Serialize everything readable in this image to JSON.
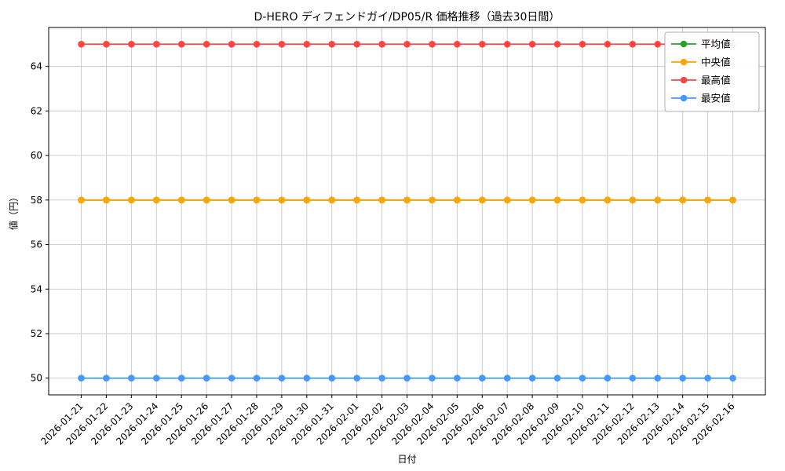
{
  "chart_data": {
    "type": "line",
    "title": "D-HERO ディフェンドガイ/DP05/R 価格推移（過去30日間）",
    "xlabel": "日付",
    "ylabel": "値（円）",
    "grid": true,
    "legend_position": "upper right",
    "ylim": [
      49.25,
      65.75
    ],
    "yticks": [
      50,
      52,
      54,
      56,
      58,
      60,
      62,
      64
    ],
    "x": [
      "2026-01-21",
      "2026-01-22",
      "2026-01-23",
      "2026-01-24",
      "2026-01-25",
      "2026-01-26",
      "2026-01-27",
      "2026-01-28",
      "2026-01-29",
      "2026-01-30",
      "2026-01-31",
      "2026-02-01",
      "2026-02-02",
      "2026-02-03",
      "2026-02-04",
      "2026-02-05",
      "2026-02-06",
      "2026-02-07",
      "2026-02-08",
      "2026-02-09",
      "2026-02-10",
      "2026-02-11",
      "2026-02-12",
      "2026-02-13",
      "2026-02-14",
      "2026-02-15",
      "2026-02-16"
    ],
    "series": [
      {
        "key": "average",
        "name": "平均値",
        "color": "#2ca02c",
        "values": [
          58,
          58,
          58,
          58,
          58,
          58,
          58,
          58,
          58,
          58,
          58,
          58,
          58,
          58,
          58,
          58,
          58,
          58,
          58,
          58,
          58,
          58,
          58,
          58,
          58,
          58,
          58
        ]
      },
      {
        "key": "median",
        "name": "中央値",
        "color": "#ffa500",
        "values": [
          58,
          58,
          58,
          58,
          58,
          58,
          58,
          58,
          58,
          58,
          58,
          58,
          58,
          58,
          58,
          58,
          58,
          58,
          58,
          58,
          58,
          58,
          58,
          58,
          58,
          58,
          58
        ]
      },
      {
        "key": "highest",
        "name": "最高値",
        "color": "#ff4444",
        "values": [
          65,
          65,
          65,
          65,
          65,
          65,
          65,
          65,
          65,
          65,
          65,
          65,
          65,
          65,
          65,
          65,
          65,
          65,
          65,
          65,
          65,
          65,
          65,
          65,
          65,
          65,
          65
        ]
      },
      {
        "key": "lowest",
        "name": "最安値",
        "color": "#4499ff",
        "values": [
          50,
          50,
          50,
          50,
          50,
          50,
          50,
          50,
          50,
          50,
          50,
          50,
          50,
          50,
          50,
          50,
          50,
          50,
          50,
          50,
          50,
          50,
          50,
          50,
          50,
          50,
          50
        ]
      }
    ]
  }
}
